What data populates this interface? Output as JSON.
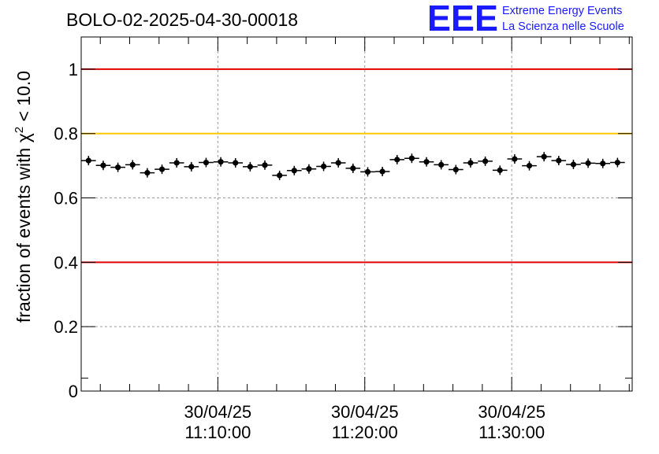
{
  "header": {
    "run_title": "BOLO-02-2025-04-30-00018",
    "logo_text": "EEE",
    "org_line1": "Extreme Energy Events",
    "org_line2": "La Scienza nelle Scuole"
  },
  "chart_data": {
    "type": "scatter",
    "title": "BOLO-02-2025-04-30-00018",
    "xlabel": "",
    "ylabel": "fraction of events with χ² < 10.0",
    "ylabel_parts": {
      "prefix": "fraction of events with χ",
      "sup": "2",
      "suffix": " < 10.0"
    },
    "x_unit": "minutes after 11:00:00 on 30/04/25",
    "xlim": [
      0.7,
      38.2
    ],
    "ylim": [
      0,
      1.1
    ],
    "grid": true,
    "y_ticks": [
      {
        "value": 0,
        "label": "0"
      },
      {
        "value": 0.2,
        "label": "0.2"
      },
      {
        "value": 0.4,
        "label": "0.4"
      },
      {
        "value": 0.6,
        "label": "0.6"
      },
      {
        "value": 0.8,
        "label": "0.8"
      },
      {
        "value": 1.0,
        "label": "1"
      }
    ],
    "x_ticks": [
      {
        "value": 10,
        "date": "30/04/25",
        "time": "11:10:00"
      },
      {
        "value": 20,
        "date": "30/04/25",
        "time": "11:20:00"
      },
      {
        "value": 30,
        "date": "30/04/25",
        "time": "11:30:00"
      }
    ],
    "reference_lines": [
      {
        "value": 1.0,
        "color": "#e00000"
      },
      {
        "value": 0.8,
        "color": "#ffc800"
      },
      {
        "value": 0.4,
        "color": "#e00000"
      }
    ],
    "bin_width": 1.0,
    "series": [
      {
        "name": "fraction",
        "color": "#000000",
        "x": [
          1.2,
          2.2,
          3.2,
          4.2,
          5.2,
          6.2,
          7.2,
          8.2,
          9.2,
          10.2,
          11.2,
          12.2,
          13.2,
          14.2,
          15.2,
          16.2,
          17.2,
          18.2,
          19.2,
          20.2,
          21.2,
          22.2,
          23.2,
          24.2,
          25.2,
          26.2,
          27.2,
          28.2,
          29.2,
          30.2,
          31.2,
          32.2,
          33.2,
          34.2,
          35.2,
          36.2,
          37.2
        ],
        "y": [
          0.716,
          0.701,
          0.695,
          0.703,
          0.678,
          0.689,
          0.709,
          0.697,
          0.71,
          0.712,
          0.709,
          0.697,
          0.702,
          0.67,
          0.685,
          0.69,
          0.698,
          0.709,
          0.692,
          0.681,
          0.682,
          0.719,
          0.723,
          0.712,
          0.703,
          0.688,
          0.709,
          0.714,
          0.686,
          0.721,
          0.7,
          0.728,
          0.716,
          0.704,
          0.708,
          0.707,
          0.71
        ]
      }
    ]
  }
}
